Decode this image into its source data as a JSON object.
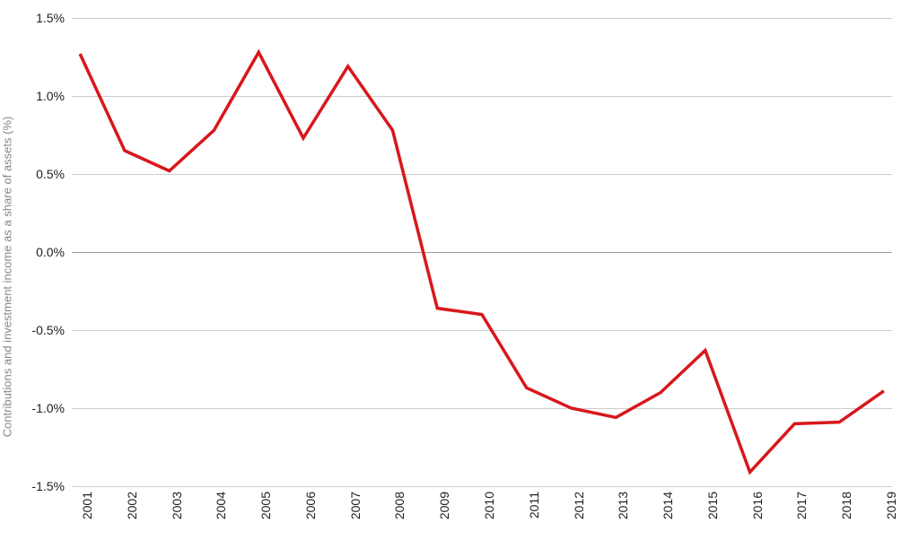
{
  "chart": {
    "type": "line",
    "y_axis_label": "Contributions and investment income as a share of assets (%)",
    "line_color": "#d8171c",
    "line_width": 3.5,
    "background_color": "#ffffff",
    "grid_color": "#cccccc",
    "zero_line_color": "#999999",
    "text_color": "#222222",
    "axis_label_color": "#888888",
    "tick_fontsize": 14,
    "label_fontsize": 13,
    "ylim": [
      -1.5,
      1.5
    ],
    "y_ticks": [
      {
        "value": 1.5,
        "label": "1.5%"
      },
      {
        "value": 1.0,
        "label": "1.0%"
      },
      {
        "value": 0.5,
        "label": "0.5%"
      },
      {
        "value": 0.0,
        "label": "0.0%"
      },
      {
        "value": -0.5,
        "label": "-0.5%"
      },
      {
        "value": -1.0,
        "label": "-1.0%"
      },
      {
        "value": -1.5,
        "label": "-1.5%"
      }
    ],
    "x_categories": [
      "2001",
      "2002",
      "2003",
      "2004",
      "2005",
      "2006",
      "2007",
      "2008",
      "2009",
      "2010",
      "2011",
      "2012",
      "2013",
      "2014",
      "2015",
      "2016",
      "2017",
      "2018",
      "2019"
    ],
    "values": [
      1.27,
      0.65,
      0.52,
      0.78,
      1.28,
      0.73,
      1.19,
      0.78,
      -0.36,
      -0.4,
      -0.87,
      -1.0,
      -1.06,
      -0.9,
      -0.63,
      -1.41,
      -1.1,
      -1.09,
      -0.89
    ]
  }
}
